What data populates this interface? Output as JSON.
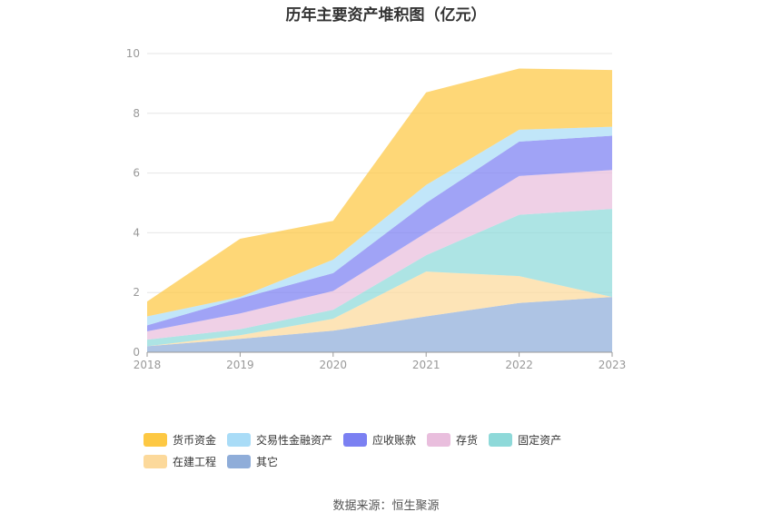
{
  "chart_data": {
    "type": "area",
    "stacked": true,
    "title": "历年主要资产堆积图（亿元）",
    "x": [
      "2018",
      "2019",
      "2020",
      "2021",
      "2022",
      "2023"
    ],
    "ylim": [
      0,
      10
    ],
    "yticks": [
      "0",
      "2",
      "4",
      "6",
      "8",
      "10"
    ],
    "grid": true,
    "legend_position": "bottom",
    "series": [
      {
        "name": "其它",
        "color": "#8fadd9",
        "values": [
          0.2,
          0.45,
          0.72,
          1.2,
          1.65,
          1.85
        ]
      },
      {
        "name": "在建工程",
        "color": "#fcd99b",
        "values": [
          0.0,
          0.12,
          0.4,
          1.5,
          0.9,
          0.0
        ]
      },
      {
        "name": "固定资产",
        "color": "#8ed9d9",
        "values": [
          0.22,
          0.2,
          0.3,
          0.55,
          2.05,
          2.95
        ]
      },
      {
        "name": "存货",
        "color": "#e9bedd",
        "values": [
          0.28,
          0.53,
          0.63,
          0.75,
          1.3,
          1.3
        ]
      },
      {
        "name": "应收账款",
        "color": "#7b80f2",
        "values": [
          0.2,
          0.5,
          0.6,
          1.0,
          1.15,
          1.15
        ]
      },
      {
        "name": "交易性金融资产",
        "color": "#a9dcf7",
        "values": [
          0.3,
          0.05,
          0.45,
          0.6,
          0.4,
          0.3
        ]
      },
      {
        "name": "货币资金",
        "color": "#fdc843",
        "values": [
          0.5,
          1.95,
          1.3,
          3.1,
          2.05,
          1.9
        ]
      }
    ],
    "legend_order": [
      "货币资金",
      "交易性金融资产",
      "应收账款",
      "存货",
      "固定资产",
      "在建工程",
      "其它"
    ]
  },
  "source_text": "数据来源：恒生聚源"
}
